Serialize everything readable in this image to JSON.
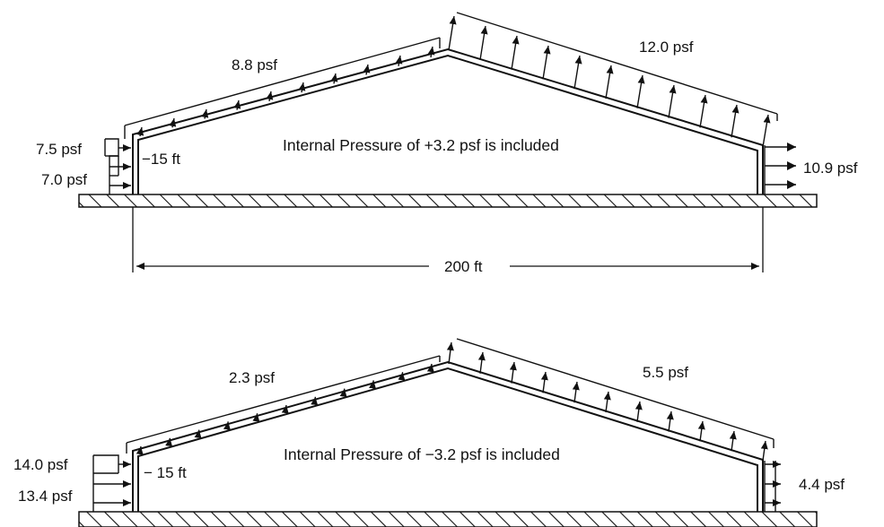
{
  "diagrams": [
    {
      "internal_pressure_note": "Internal Pressure of +3.2 psf is included",
      "windward_roof_pressure": "8.8 psf",
      "leeward_roof_pressure": "12.0 psf",
      "windward_wall_upper_pressure": "7.5 psf",
      "windward_wall_lower_pressure": "7.0 psf",
      "leeward_wall_pressure": "10.9 psf",
      "height_marker": "−15 ft",
      "span_dimension": "200 ft"
    },
    {
      "internal_pressure_note": "Internal Pressure of −3.2 psf is included",
      "windward_roof_pressure": "2.3 psf",
      "leeward_roof_pressure": "5.5 psf",
      "windward_wall_upper_pressure": "14.0 psf",
      "windward_wall_lower_pressure": "13.4 psf",
      "leeward_wall_pressure": "4.4 psf",
      "height_marker": "− 15 ft"
    }
  ],
  "colors": {
    "ink": "#111111",
    "paper": "#ffffff"
  }
}
